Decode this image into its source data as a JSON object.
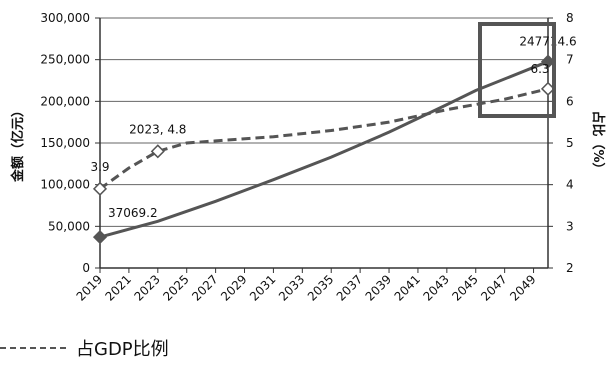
{
  "chart_data": {
    "type": "line",
    "title": "",
    "x_categories": [
      "2019",
      "2021",
      "2023",
      "2025",
      "2027",
      "2029",
      "2031",
      "2033",
      "2035",
      "2037",
      "2039",
      "2041",
      "2043",
      "2045",
      "2047",
      "2049"
    ],
    "x_range": [
      2019,
      2050
    ],
    "y_left": {
      "label": "金额（亿元）",
      "ylim": [
        0,
        300000
      ],
      "ticks": [
        "0",
        "50,000",
        "100,000",
        "150,000",
        "200,000",
        "250,000",
        "300,000"
      ]
    },
    "y_right": {
      "label": "占比（%）",
      "ylim": [
        2,
        8
      ],
      "ticks": [
        "2",
        "3",
        "4",
        "5",
        "6",
        "7",
        "8"
      ]
    },
    "grid": "horizontal",
    "series": [
      {
        "name": "",
        "axis": "left",
        "style": "solid",
        "color": "#555555",
        "x": [
          2019,
          2023,
          2027,
          2031,
          2035,
          2039,
          2043,
          2045,
          2050
        ],
        "y": [
          37069.2,
          56000,
          80000,
          106000,
          133000,
          163000,
          196000,
          213000,
          247714.6
        ]
      },
      {
        "name": "占GDP比例",
        "axis": "right",
        "style": "dashed",
        "color": "#555555",
        "x": [
          2019,
          2021,
          2023,
          2025,
          2027,
          2031,
          2035,
          2039,
          2043,
          2047,
          2050
        ],
        "y": [
          3.9,
          4.4,
          4.8,
          5.0,
          5.05,
          5.15,
          5.3,
          5.5,
          5.8,
          6.05,
          6.3
        ]
      }
    ],
    "annotations": [
      {
        "text": "37069.2",
        "series": 0,
        "point": 0
      },
      {
        "text": "247714.6",
        "series": 0,
        "point": 8
      },
      {
        "text": "3.9",
        "series": 1,
        "point": 0
      },
      {
        "text": "2023, 4.8",
        "series": 1,
        "point": 2
      },
      {
        "text": "6.3",
        "series": 1,
        "point": 10
      }
    ],
    "highlight_box": true,
    "legend": {
      "position": "bottom-left",
      "entries": [
        "占GDP比例"
      ]
    }
  }
}
